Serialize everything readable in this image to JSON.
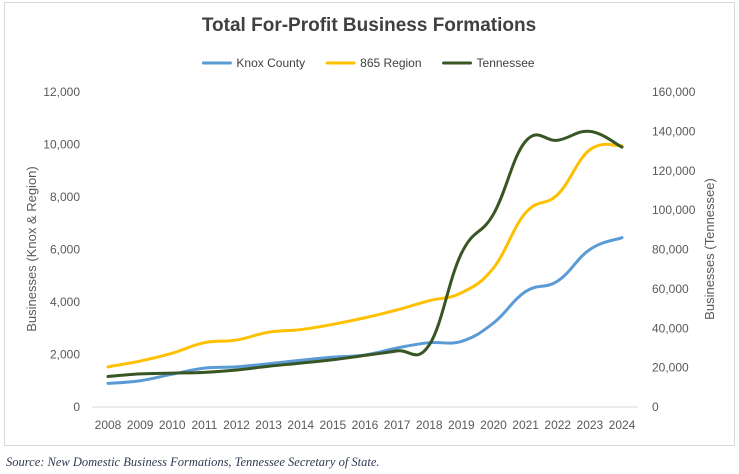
{
  "chart_data": {
    "type": "line",
    "title": "Total For-Profit Business Formations",
    "x": [
      "2008",
      "2009",
      "2010",
      "2011",
      "2012",
      "2013",
      "2014",
      "2015",
      "2016",
      "2017",
      "2018",
      "2019",
      "2020",
      "2021",
      "2022",
      "2023",
      "2024"
    ],
    "ylabel_left": "Businesses (Knox & Region)",
    "ylabel_right": "Businesses (Tennessee)",
    "ylim_left": [
      0,
      12000
    ],
    "ylim_right": [
      0,
      160000
    ],
    "yticks_left": [
      "0",
      "2,000",
      "4,000",
      "6,000",
      "8,000",
      "10,000",
      "12,000"
    ],
    "yticks_right": [
      "0",
      "20,000",
      "40,000",
      "60,000",
      "80,000",
      "100,000",
      "120,000",
      "140,000",
      "160,000"
    ],
    "grid": false,
    "legend_position": "top",
    "series": [
      {
        "name": "Knox County",
        "axis": "left",
        "color": "#5b9bd5",
        "values": [
          900,
          1000,
          1250,
          1480,
          1530,
          1650,
          1780,
          1900,
          1980,
          2250,
          2450,
          2500,
          3200,
          4400,
          4800,
          6000,
          6450
        ]
      },
      {
        "name": "865 Region",
        "axis": "left",
        "color": "#ffc000",
        "values": [
          1530,
          1750,
          2050,
          2450,
          2550,
          2850,
          2950,
          3150,
          3400,
          3700,
          4050,
          4350,
          5300,
          7400,
          8100,
          9800,
          9950
        ]
      },
      {
        "name": "Tennessee",
        "axis": "right",
        "color": "#375623",
        "values": [
          15500,
          16800,
          17200,
          17600,
          18800,
          20700,
          22300,
          24000,
          26200,
          28500,
          31500,
          78000,
          98000,
          135000,
          135500,
          140000,
          132000
        ]
      }
    ]
  },
  "source_note": "Source: New Domestic Business Formations, Tennessee Secretary of State."
}
